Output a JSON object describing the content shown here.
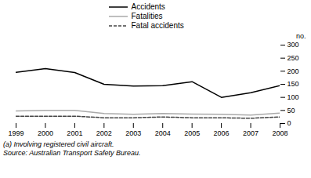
{
  "chart_data": {
    "type": "line",
    "x": [
      1999,
      2000,
      2001,
      2002,
      2003,
      2004,
      2005,
      2006,
      2007,
      2008
    ],
    "series": [
      {
        "name": "Accidents",
        "color": "#000000",
        "line_style": "solid",
        "values": [
          196,
          210,
          195,
          150,
          143,
          145,
          160,
          100,
          118,
          145
        ]
      },
      {
        "name": "Fatalities",
        "color": "#aaaaaa",
        "line_style": "solid",
        "values": [
          48,
          50,
          50,
          38,
          35,
          38,
          36,
          35,
          32,
          40
        ]
      },
      {
        "name": "Fatal accidents",
        "color": "#444444",
        "line_style": "dashed",
        "values": [
          28,
          28,
          28,
          22,
          22,
          25,
          22,
          22,
          20,
          25
        ]
      }
    ],
    "xlim": [
      1999,
      2008
    ],
    "xticks": [
      1999,
      2000,
      2001,
      2002,
      2003,
      2004,
      2005,
      2006,
      2007,
      2008
    ],
    "ylim": [
      0,
      300
    ],
    "yticks": [
      0,
      50,
      100,
      150,
      200,
      250,
      300
    ],
    "y_label": "no.",
    "annotations": [
      "(a) Involving registered civil aircraft.",
      "Source: Australian Transport Safety Bureau."
    ],
    "legend": "top",
    "grid": false
  }
}
